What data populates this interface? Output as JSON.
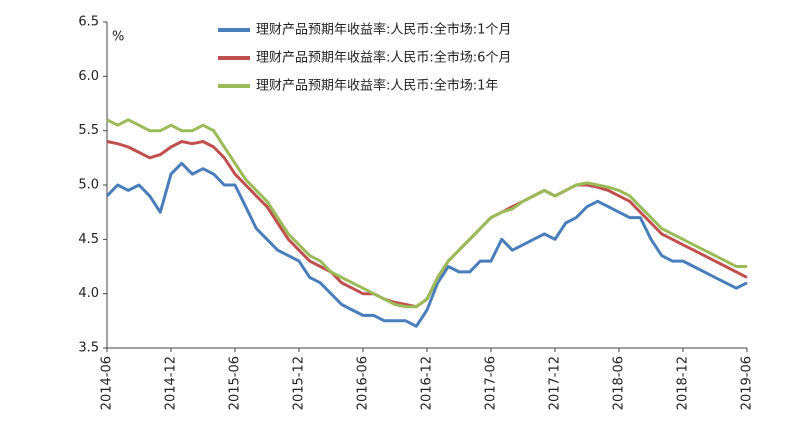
{
  "chart_data": {
    "type": "line",
    "y_label": "%",
    "categories": [
      "2014-06",
      null,
      null,
      null,
      null,
      null,
      "2014-12",
      null,
      null,
      null,
      null,
      null,
      "2015-06",
      null,
      null,
      null,
      null,
      null,
      "2015-12",
      null,
      null,
      null,
      null,
      null,
      "2016-06",
      null,
      null,
      null,
      null,
      null,
      "2016-12",
      null,
      null,
      null,
      null,
      null,
      "2017-06",
      null,
      null,
      null,
      null,
      null,
      "2017-12",
      null,
      null,
      null,
      null,
      null,
      "2018-06",
      null,
      null,
      null,
      null,
      null,
      "2018-12",
      null,
      null,
      null,
      null,
      null,
      "2019-06"
    ],
    "series": [
      {
        "name": "理财产品预期年收益率:人民币:全市场:1个月",
        "color": "#4a7ebb",
        "values": [
          4.9,
          5.0,
          4.95,
          5.0,
          4.9,
          4.75,
          5.1,
          5.2,
          5.1,
          5.15,
          5.1,
          5.0,
          5.0,
          4.8,
          4.6,
          4.5,
          4.4,
          4.35,
          4.3,
          4.15,
          4.1,
          4.0,
          3.9,
          3.85,
          3.8,
          3.8,
          3.75,
          3.75,
          3.75,
          3.7,
          3.85,
          4.1,
          4.25,
          4.2,
          4.2,
          4.3,
          4.3,
          4.5,
          4.4,
          4.45,
          4.5,
          4.55,
          4.5,
          4.65,
          4.7,
          4.8,
          4.85,
          4.8,
          4.75,
          4.7,
          4.7,
          4.5,
          4.35,
          4.3,
          4.3,
          4.25,
          4.2,
          4.15,
          4.1,
          4.05,
          4.1
        ]
      },
      {
        "name": "理财产品预期年收益率:人民币:全市场:6个月",
        "color": "#c0504d",
        "values": [
          5.4,
          5.38,
          5.35,
          5.3,
          5.25,
          5.28,
          5.35,
          5.4,
          5.38,
          5.4,
          5.35,
          5.25,
          5.1,
          5.0,
          4.9,
          4.8,
          4.65,
          4.5,
          4.4,
          4.3,
          4.25,
          4.2,
          4.1,
          4.05,
          4.0,
          4.0,
          3.95,
          3.92,
          3.9,
          3.88,
          3.95,
          4.15,
          4.3,
          4.4,
          4.5,
          4.6,
          4.7,
          4.75,
          4.8,
          4.85,
          4.9,
          4.95,
          4.9,
          4.95,
          5.0,
          5.0,
          4.98,
          4.95,
          4.9,
          4.85,
          4.75,
          4.65,
          4.55,
          4.5,
          4.45,
          4.4,
          4.35,
          4.3,
          4.25,
          4.2,
          4.15
        ]
      },
      {
        "name": "理财产品预期年收益率:人民币:全市场:1年",
        "color": "#9bbb59",
        "values": [
          5.6,
          5.55,
          5.6,
          5.55,
          5.5,
          5.5,
          5.55,
          5.5,
          5.5,
          5.55,
          5.5,
          5.35,
          5.2,
          5.05,
          4.95,
          4.85,
          4.7,
          4.55,
          4.45,
          4.35,
          4.3,
          4.2,
          4.15,
          4.1,
          4.05,
          4.0,
          3.95,
          3.9,
          3.88,
          3.88,
          3.95,
          4.15,
          4.3,
          4.4,
          4.5,
          4.6,
          4.7,
          4.75,
          4.78,
          4.85,
          4.9,
          4.95,
          4.9,
          4.95,
          5.0,
          5.02,
          5.0,
          4.98,
          4.95,
          4.9,
          4.8,
          4.7,
          4.6,
          4.55,
          4.5,
          4.45,
          4.4,
          4.35,
          4.3,
          4.25,
          4.25
        ]
      }
    ],
    "ylim": [
      3.5,
      6.5
    ],
    "yticks": [
      3.5,
      {
        "value": 4,
        "label": "4.0"
      },
      4.5,
      {
        "value": 5,
        "label": "5.0"
      },
      5.5,
      {
        "value": 6,
        "label": "6.0"
      },
      6.5
    ],
    "grid": false
  }
}
